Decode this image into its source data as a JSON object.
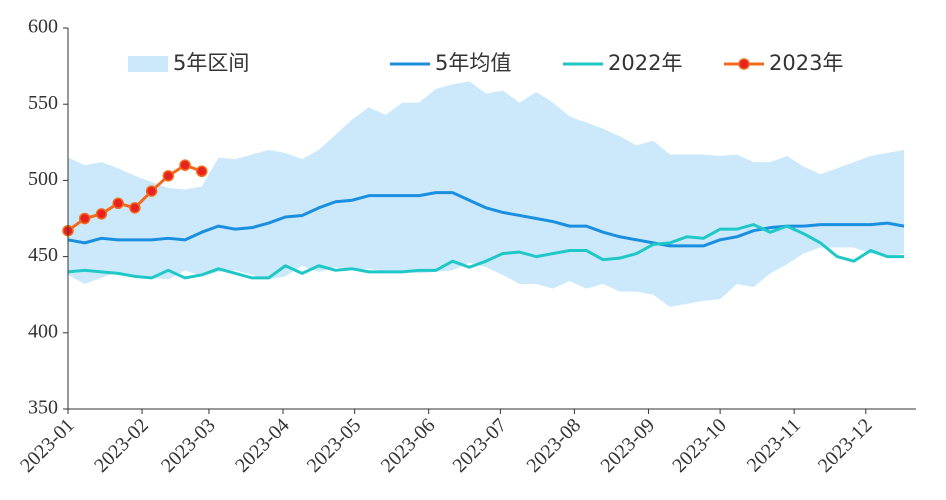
{
  "chart_data": {
    "type": "line",
    "x": [
      0,
      7,
      14,
      21,
      28,
      35,
      42,
      49,
      56,
      63,
      70,
      77,
      84,
      91,
      98,
      105,
      112,
      119,
      126,
      133,
      140,
      147,
      154,
      161,
      168,
      175,
      182,
      189,
      196,
      203,
      210,
      217,
      224,
      231,
      238,
      245,
      252,
      259,
      266,
      273,
      280,
      287,
      294,
      301,
      308,
      315,
      322,
      329,
      336,
      343,
      350
    ],
    "xlim": [
      0,
      355
    ],
    "xticks": [
      {
        "value": 0,
        "label": "2023-01"
      },
      {
        "value": 31,
        "label": "2023-02"
      },
      {
        "value": 59,
        "label": "2023-03"
      },
      {
        "value": 90,
        "label": "2023-04"
      },
      {
        "value": 120,
        "label": "2023-05"
      },
      {
        "value": 151,
        "label": "2023-06"
      },
      {
        "value": 181,
        "label": "2023-07"
      },
      {
        "value": 212,
        "label": "2023-08"
      },
      {
        "value": 243,
        "label": "2023-09"
      },
      {
        "value": 273,
        "label": "2023-10"
      },
      {
        "value": 304,
        "label": "2023-11"
      },
      {
        "value": 334,
        "label": "2023-12"
      }
    ],
    "ylim": [
      350,
      600
    ],
    "yticks": [
      350,
      400,
      450,
      500,
      550,
      600
    ],
    "band": {
      "name": "5年区间",
      "color": "#cce9fb",
      "high": [
        515,
        510,
        512,
        508,
        503,
        499,
        495,
        494,
        496,
        515,
        514,
        517,
        520,
        518,
        514,
        520,
        530,
        540,
        548,
        543,
        551,
        551,
        560,
        563,
        565,
        557,
        559,
        551,
        558,
        551,
        542,
        538,
        534,
        529,
        523,
        526,
        517,
        517,
        517,
        516,
        517,
        512,
        512,
        516,
        509,
        504,
        508,
        512,
        516,
        518,
        520
      ],
      "low": [
        438,
        432,
        436,
        440,
        437,
        436,
        435,
        441,
        437,
        440,
        441,
        438,
        435,
        437,
        444,
        440,
        443,
        441,
        442,
        440,
        440,
        439,
        440,
        441,
        446,
        443,
        438,
        432,
        432,
        429,
        434,
        429,
        432,
        427,
        427,
        425,
        417,
        419,
        421,
        422,
        432,
        430,
        439,
        445,
        452,
        456,
        456,
        456,
        452,
        450,
        452
      ]
    },
    "series": [
      {
        "name": "5年均值",
        "color": "#1a8fe0",
        "values": [
          461,
          459,
          462,
          461,
          461,
          461,
          462,
          461,
          466,
          470,
          468,
          469,
          472,
          476,
          477,
          482,
          486,
          487,
          490,
          490,
          490,
          490,
          492,
          492,
          487,
          482,
          479,
          477,
          475,
          473,
          470,
          470,
          466,
          463,
          461,
          459,
          457,
          457,
          457,
          461,
          463,
          467,
          469,
          470,
          470,
          471,
          471,
          471,
          471,
          472,
          470
        ]
      },
      {
        "name": "2022年",
        "color": "#1fc7c7",
        "values": [
          440,
          441,
          440,
          439,
          437,
          436,
          441,
          436,
          438,
          442,
          439,
          436,
          436,
          444,
          439,
          444,
          441,
          442,
          440,
          440,
          440,
          441,
          441,
          447,
          443,
          447,
          452,
          453,
          450,
          452,
          454,
          454,
          448,
          449,
          452,
          458,
          459,
          463,
          462,
          468,
          468,
          471,
          466,
          470,
          465,
          459,
          450,
          447,
          454,
          450,
          450
        ]
      },
      {
        "name": "2023年",
        "color": "#f26b1d",
        "marker_color": "#e8231f",
        "values": [
          467,
          475,
          478,
          485,
          482,
          493,
          503,
          510,
          506,
          null,
          null,
          null,
          null,
          null,
          null,
          null,
          null,
          null,
          null,
          null,
          null,
          null,
          null,
          null,
          null,
          null,
          null,
          null,
          null,
          null,
          null,
          null,
          null,
          null,
          null,
          null,
          null,
          null,
          null,
          null,
          null,
          null,
          null,
          null,
          null,
          null,
          null,
          null,
          null,
          null,
          null
        ]
      }
    ]
  }
}
